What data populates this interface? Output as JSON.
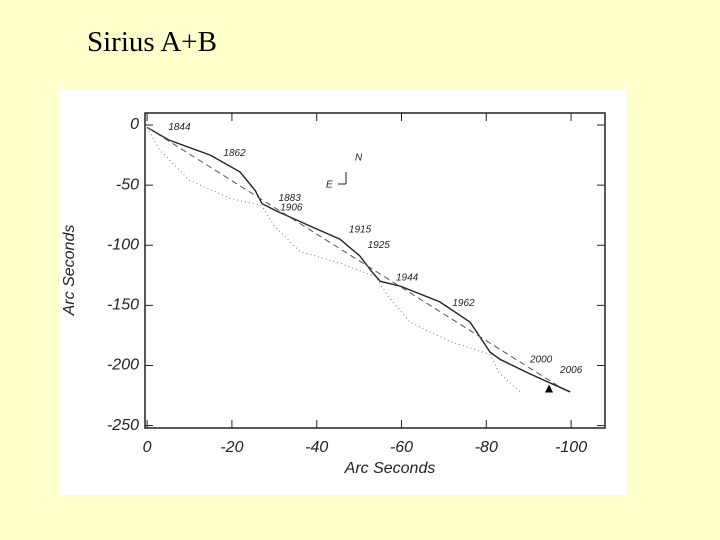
{
  "slide_title": "Sirius A+B",
  "chart_data": {
    "type": "line",
    "xlabel": "Arc Seconds",
    "ylabel": "Arc Seconds",
    "xlim": [
      0.5,
      -108
    ],
    "ylim": [
      10,
      -252
    ],
    "xticks": [
      0,
      -20,
      -40,
      -60,
      -80,
      -100
    ],
    "yticks": [
      0,
      -50,
      -100,
      -150,
      -200,
      -250
    ],
    "series": [
      {
        "color": "#222222",
        "style": "solid",
        "x": [
          0,
          -5.2,
          -14.9,
          -21.9,
          -25.5,
          -27.1,
          -30.2,
          -38.4,
          -45.5,
          -50.2,
          -53,
          -55,
          -59.7,
          -69,
          -76.2,
          -80.9,
          -83.3,
          -90.3,
          -99.8
        ],
        "values": [
          -2,
          -12.6,
          -25,
          -39,
          -54.5,
          -65.4,
          -71,
          -84,
          -95,
          -109,
          -122,
          -130,
          -134,
          -147,
          -164,
          -189,
          -195,
          -207,
          -222
        ]
      },
      {
        "color": "#777777",
        "style": "dotted",
        "x": [
          0,
          -3,
          -10,
          -19.6,
          -27,
          -30,
          -36,
          -45.5,
          -53.8,
          -57,
          -62,
          -71.5,
          -81,
          -83,
          -88
        ],
        "values": [
          -2,
          -21,
          -46,
          -61,
          -67,
          -84,
          -105,
          -115,
          -126,
          -143,
          -164,
          -180,
          -191,
          -206,
          -222
        ]
      },
      {
        "color": "#555555",
        "style": "dashed",
        "x": [
          0,
          -97.4
        ],
        "values": [
          -2,
          -218
        ]
      },
      {
        "color": "#000000",
        "style": "triangle",
        "x": [
          -94.8
        ],
        "values": [
          -220
        ]
      }
    ],
    "annotations": [
      {
        "text": "1844",
        "x": -5,
        "y": -2
      },
      {
        "text": "1862",
        "x": -18,
        "y": -23.5
      },
      {
        "text": "1883",
        "x": -31,
        "y": -61
      },
      {
        "text": "1906",
        "x": -31.4,
        "y": -69
      },
      {
        "text": "1915",
        "x": -47.6,
        "y": -87
      },
      {
        "text": "1925",
        "x": -52,
        "y": -100
      },
      {
        "text": "1944",
        "x": -58.7,
        "y": -127
      },
      {
        "text": "1962",
        "x": -72,
        "y": -148.5
      },
      {
        "text": "2000",
        "x": -90.3,
        "y": -195.5
      },
      {
        "text": "2006",
        "x": -97.4,
        "y": -204
      }
    ],
    "compass": {
      "north": "N",
      "east": "E"
    }
  }
}
